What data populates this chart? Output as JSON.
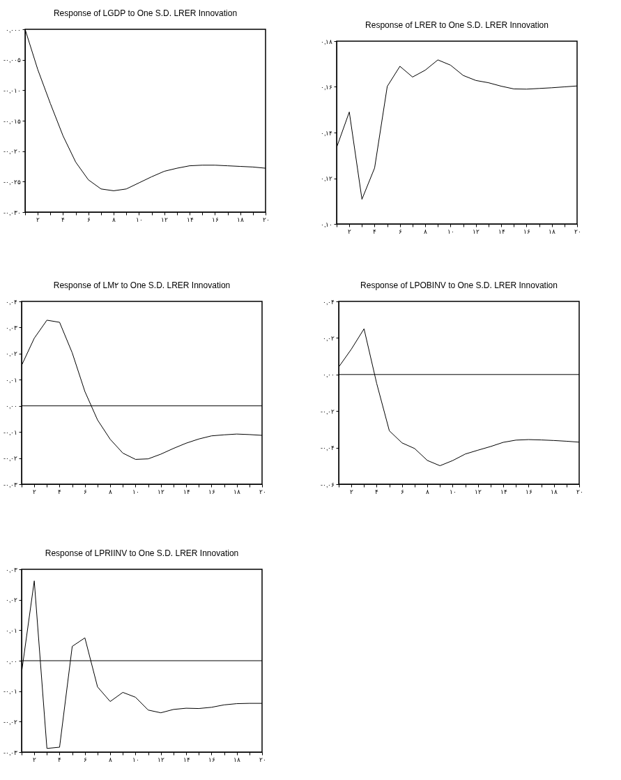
{
  "chart_data": [
    {
      "type": "line",
      "title": "Response of LGDP to One S.D. LRER Innovation",
      "x": [
        1,
        2,
        3,
        4,
        5,
        6,
        7,
        8,
        9,
        10,
        11,
        12,
        13,
        14,
        15,
        16,
        17,
        18,
        19,
        20
      ],
      "xlim": [
        1,
        20
      ],
      "xticks": [
        {
          "value": 1,
          "label": null
        },
        {
          "value": 2,
          "label": "۲"
        },
        {
          "value": 3,
          "label": null
        },
        {
          "value": 4,
          "label": "۴"
        },
        {
          "value": 5,
          "label": null
        },
        {
          "value": 6,
          "label": "۶"
        },
        {
          "value": 7,
          "label": null
        },
        {
          "value": 8,
          "label": "۸"
        },
        {
          "value": 9,
          "label": null
        },
        {
          "value": 10,
          "label": "۱۰"
        },
        {
          "value": 11,
          "label": null
        },
        {
          "value": 12,
          "label": "۱۲"
        },
        {
          "value": 13,
          "label": null
        },
        {
          "value": 14,
          "label": "۱۴"
        },
        {
          "value": 15,
          "label": null
        },
        {
          "value": 16,
          "label": "۱۶"
        },
        {
          "value": 17,
          "label": null
        },
        {
          "value": 18,
          "label": "۱۸"
        },
        {
          "value": 19,
          "label": null
        },
        {
          "value": 20,
          "label": "۲۰"
        }
      ],
      "ylim": [
        -0.03,
        0
      ],
      "yticks": [
        {
          "value": 0,
          "label": "۰,۰۰۰"
        },
        {
          "value": -0.005,
          "label": "-۰,۰۰۵"
        },
        {
          "value": -0.01,
          "label": "-۰,۰۱۰"
        },
        {
          "value": -0.015,
          "label": "-۰,۰۱۵"
        },
        {
          "value": -0.02,
          "label": "-۰,۰۲۰"
        },
        {
          "value": -0.025,
          "label": "-۰,۰۲۵"
        },
        {
          "value": -0.03,
          "label": "-۰,۰۳۰"
        }
      ],
      "series": [
        {
          "color": "#000000",
          "values": [
            0,
            -0.0066,
            -0.0122,
            -0.0175,
            -0.0218,
            -0.0247,
            -0.0262,
            -0.0265,
            -0.0262,
            -0.0252,
            -0.0242,
            -0.0233,
            -0.0228,
            -0.0224,
            -0.0223,
            -0.0223,
            -0.0224,
            -0.0225,
            -0.0226,
            -0.0228
          ]
        }
      ]
    },
    {
      "type": "line",
      "title": "Response of LRER to One S.D. LRER Innovation",
      "x": [
        1,
        2,
        3,
        4,
        5,
        6,
        7,
        8,
        9,
        10,
        11,
        12,
        13,
        14,
        15,
        16,
        17,
        18,
        19,
        20
      ],
      "xlim": [
        1,
        20
      ],
      "xticks": [
        {
          "value": 1,
          "label": null
        },
        {
          "value": 2,
          "label": "۲"
        },
        {
          "value": 3,
          "label": null
        },
        {
          "value": 4,
          "label": "۴"
        },
        {
          "value": 5,
          "label": null
        },
        {
          "value": 6,
          "label": "۶"
        },
        {
          "value": 7,
          "label": null
        },
        {
          "value": 8,
          "label": "۸"
        },
        {
          "value": 9,
          "label": null
        },
        {
          "value": 10,
          "label": "۱۰"
        },
        {
          "value": 11,
          "label": null
        },
        {
          "value": 12,
          "label": "۱۲"
        },
        {
          "value": 13,
          "label": null
        },
        {
          "value": 14,
          "label": "۱۴"
        },
        {
          "value": 15,
          "label": null
        },
        {
          "value": 16,
          "label": "۱۶"
        },
        {
          "value": 17,
          "label": null
        },
        {
          "value": 18,
          "label": "۱۸"
        },
        {
          "value": 19,
          "label": null
        },
        {
          "value": 20,
          "label": "۲۰"
        }
      ],
      "ylim": [
        0.1,
        0.18
      ],
      "yticks": [
        {
          "value": 0.1,
          "label": "۰,۱۰"
        },
        {
          "value": 0.12,
          "label": "۰,۱۲"
        },
        {
          "value": 0.14,
          "label": "۰,۱۴"
        },
        {
          "value": 0.16,
          "label": "۰,۱۶"
        },
        {
          "value": 0.18,
          "label": "۰,۱۸"
        }
      ],
      "series": [
        {
          "color": "#000000",
          "values": [
            0.1335,
            0.149,
            0.1108,
            0.1245,
            0.1602,
            0.169,
            0.1643,
            0.1673,
            0.1718,
            0.1695,
            0.165,
            0.1628,
            0.1618,
            0.1603,
            0.1591,
            0.159,
            0.1593,
            0.1596,
            0.16,
            0.1604
          ]
        }
      ]
    },
    {
      "type": "line",
      "title": "Response of LM۲ to One S.D. LRER Innovation",
      "x": [
        1,
        2,
        3,
        4,
        5,
        6,
        7,
        8,
        9,
        10,
        11,
        12,
        13,
        14,
        15,
        16,
        17,
        18,
        19,
        20
      ],
      "xlim": [
        1,
        20
      ],
      "xticks": [
        {
          "value": 1,
          "label": null
        },
        {
          "value": 2,
          "label": "۲"
        },
        {
          "value": 3,
          "label": null
        },
        {
          "value": 4,
          "label": "۴"
        },
        {
          "value": 5,
          "label": null
        },
        {
          "value": 6,
          "label": "۶"
        },
        {
          "value": 7,
          "label": null
        },
        {
          "value": 8,
          "label": "۸"
        },
        {
          "value": 9,
          "label": null
        },
        {
          "value": 10,
          "label": "۱۰"
        },
        {
          "value": 11,
          "label": null
        },
        {
          "value": 12,
          "label": "۱۲"
        },
        {
          "value": 13,
          "label": null
        },
        {
          "value": 14,
          "label": "۱۴"
        },
        {
          "value": 15,
          "label": null
        },
        {
          "value": 16,
          "label": "۱۶"
        },
        {
          "value": 17,
          "label": null
        },
        {
          "value": 18,
          "label": "۱۸"
        },
        {
          "value": 19,
          "label": null
        },
        {
          "value": 20,
          "label": "۲۰"
        }
      ],
      "ylim": [
        -0.03,
        0.04
      ],
      "yticks": [
        {
          "value": 0.04,
          "label": "۰,۰۴"
        },
        {
          "value": 0.03,
          "label": "۰,۰۳"
        },
        {
          "value": 0.02,
          "label": "۰,۰۲"
        },
        {
          "value": 0.01,
          "label": "۰,۰۱"
        },
        {
          "value": 0,
          "label": "۰,۰۰"
        },
        {
          "value": -0.01,
          "label": "-۰,۰۱"
        },
        {
          "value": -0.02,
          "label": "-۰,۰۲"
        },
        {
          "value": -0.03,
          "label": "-۰,۰۳"
        }
      ],
      "ref_lines": [
        {
          "axis": "y",
          "value": 0,
          "label": null,
          "color": "#000000"
        }
      ],
      "series": [
        {
          "color": "#000000",
          "values": [
            0.0155,
            0.0259,
            0.0328,
            0.032,
            0.0203,
            0.0055,
            -0.0054,
            -0.0128,
            -0.0181,
            -0.0205,
            -0.0203,
            -0.0185,
            -0.0163,
            -0.0143,
            -0.0127,
            -0.0115,
            -0.0111,
            -0.0108,
            -0.011,
            -0.0113
          ]
        }
      ]
    },
    {
      "type": "line",
      "title": "Response of LPOBINV to One S.D. LRER Innovation",
      "x": [
        1,
        2,
        3,
        4,
        5,
        6,
        7,
        8,
        9,
        10,
        11,
        12,
        13,
        14,
        15,
        16,
        17,
        18,
        19,
        20
      ],
      "xlim": [
        1,
        20
      ],
      "xticks": [
        {
          "value": 1,
          "label": null
        },
        {
          "value": 2,
          "label": "۲"
        },
        {
          "value": 3,
          "label": null
        },
        {
          "value": 4,
          "label": "۴"
        },
        {
          "value": 5,
          "label": null
        },
        {
          "value": 6,
          "label": "۶"
        },
        {
          "value": 7,
          "label": null
        },
        {
          "value": 8,
          "label": "۸"
        },
        {
          "value": 9,
          "label": null
        },
        {
          "value": 10,
          "label": "۱۰"
        },
        {
          "value": 11,
          "label": null
        },
        {
          "value": 12,
          "label": "۱۲"
        },
        {
          "value": 13,
          "label": null
        },
        {
          "value": 14,
          "label": "۱۴"
        },
        {
          "value": 15,
          "label": null
        },
        {
          "value": 16,
          "label": "۱۶"
        },
        {
          "value": 17,
          "label": null
        },
        {
          "value": 18,
          "label": "۱۸"
        },
        {
          "value": 19,
          "label": null
        },
        {
          "value": 20,
          "label": "۲۰"
        }
      ],
      "ylim": [
        -0.06,
        0.04
      ],
      "yticks": [
        {
          "value": 0.04,
          "label": "۰,۰۴"
        },
        {
          "value": 0.02,
          "label": "۰,۰۲"
        },
        {
          "value": 0,
          "label": "۰,۰۰"
        },
        {
          "value": -0.02,
          "label": "-۰,۰۲"
        },
        {
          "value": -0.04,
          "label": "-۰,۰۴"
        },
        {
          "value": -0.06,
          "label": "-۰,۰۶"
        }
      ],
      "ref_lines": [
        {
          "axis": "y",
          "value": 0,
          "label": null,
          "color": "#000000"
        }
      ],
      "series": [
        {
          "color": "#000000",
          "values": [
            0.0041,
            0.0139,
            0.025,
            -0.0049,
            -0.0308,
            -0.0374,
            -0.0405,
            -0.047,
            -0.0499,
            -0.0471,
            -0.0435,
            -0.0414,
            -0.0394,
            -0.0371,
            -0.0359,
            -0.0356,
            -0.0358,
            -0.0361,
            -0.0365,
            -0.037
          ]
        }
      ]
    },
    {
      "type": "line",
      "title": "Response of LPRIINV to One S.D. LRER Innovation",
      "x": [
        1,
        2,
        3,
        4,
        5,
        6,
        7,
        8,
        9,
        10,
        11,
        12,
        13,
        14,
        15,
        16,
        17,
        18,
        19,
        20
      ],
      "xlim": [
        1,
        20
      ],
      "xticks": [
        {
          "value": 1,
          "label": null
        },
        {
          "value": 2,
          "label": "۲"
        },
        {
          "value": 3,
          "label": null
        },
        {
          "value": 4,
          "label": "۴"
        },
        {
          "value": 5,
          "label": null
        },
        {
          "value": 6,
          "label": "۶"
        },
        {
          "value": 7,
          "label": null
        },
        {
          "value": 8,
          "label": "۸"
        },
        {
          "value": 9,
          "label": null
        },
        {
          "value": 10,
          "label": "۱۰"
        },
        {
          "value": 11,
          "label": null
        },
        {
          "value": 12,
          "label": "۱۲"
        },
        {
          "value": 13,
          "label": null
        },
        {
          "value": 14,
          "label": "۱۴"
        },
        {
          "value": 15,
          "label": null
        },
        {
          "value": 16,
          "label": "۱۶"
        },
        {
          "value": 17,
          "label": null
        },
        {
          "value": 18,
          "label": "۱۸"
        },
        {
          "value": 19,
          "label": null
        },
        {
          "value": 20,
          "label": "۲۰"
        }
      ],
      "ylim": [
        -0.03,
        0.03
      ],
      "yticks": [
        {
          "value": 0.03,
          "label": "۰,۰۳"
        },
        {
          "value": 0.02,
          "label": "۰,۰۲"
        },
        {
          "value": 0.01,
          "label": "۰,۰۱"
        },
        {
          "value": 0,
          "label": "۰,۰۰"
        },
        {
          "value": -0.01,
          "label": "-۰,۰۱"
        },
        {
          "value": -0.02,
          "label": "-۰,۰۲"
        },
        {
          "value": -0.03,
          "label": "-۰,۰۳"
        }
      ],
      "ref_lines": [
        {
          "axis": "y",
          "value": 0,
          "label": null,
          "color": "#000000"
        }
      ],
      "series": [
        {
          "color": "#000000",
          "values": [
            -0.0038,
            0.0262,
            -0.0288,
            -0.0284,
            0.0047,
            0.0075,
            -0.0086,
            -0.0134,
            -0.0104,
            -0.012,
            -0.0162,
            -0.0171,
            -0.016,
            -0.0156,
            -0.0157,
            -0.0153,
            -0.0145,
            -0.0141,
            -0.014,
            -0.014
          ]
        }
      ]
    }
  ]
}
